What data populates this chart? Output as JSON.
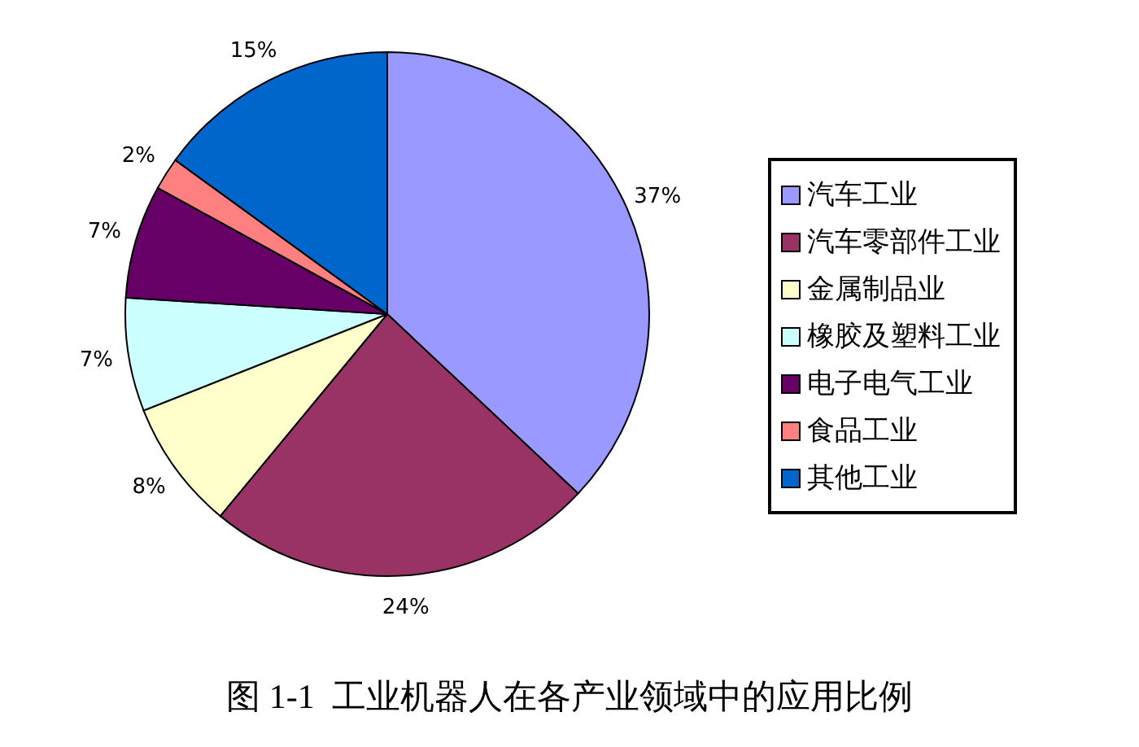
{
  "chart_data": {
    "type": "pie",
    "title": "图 1-1  工业机器人在各产业领域中的应用比例",
    "categories": [
      "汽车工业",
      "汽车零部件工业",
      "金属制品业",
      "橡胶及塑料工业",
      "电子电气工业",
      "食品工业",
      "其他工业"
    ],
    "values": [
      37,
      24,
      8,
      7,
      7,
      2,
      15
    ],
    "colors": [
      "#9999ff",
      "#993366",
      "#ffffcc",
      "#ccffff",
      "#660066",
      "#ff8080",
      "#0066cc"
    ],
    "value_labels": [
      "37%",
      "24%",
      "8%",
      "7%",
      "7%",
      "2%",
      "15%"
    ],
    "legend": "right"
  }
}
